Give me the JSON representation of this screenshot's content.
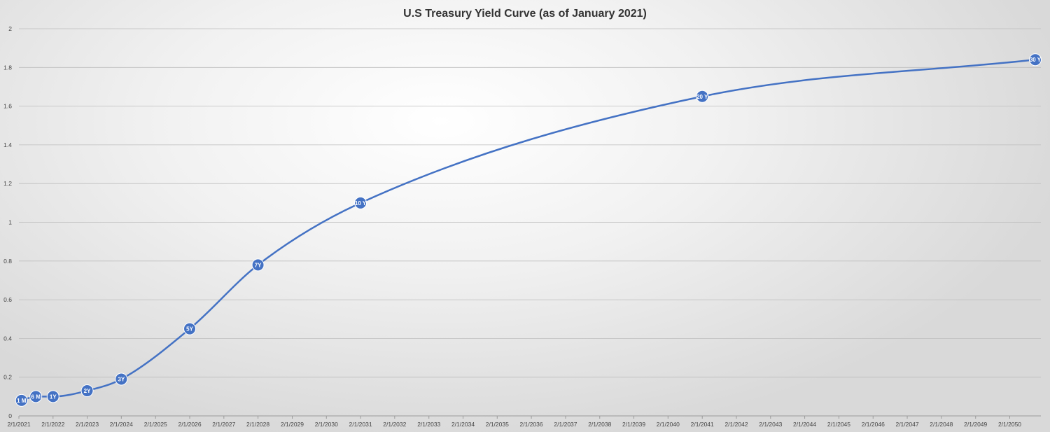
{
  "chart_data": {
    "type": "line",
    "title": "U.S Treasury Yield Curve (as of January 2021)",
    "xlabel": "",
    "ylabel": "",
    "ylim": [
      0,
      2
    ],
    "y_ticks": [
      "0",
      "0.2",
      "0.4",
      "0.6",
      "0.8",
      "1",
      "1.2",
      "1.4",
      "1.6",
      "1.8",
      "2"
    ],
    "x_range": [
      "2021-02-01",
      "2050-12-31"
    ],
    "x_ticks": [
      {
        "label": "2/1/2021",
        "year": 2021
      },
      {
        "label": "2/1/2022",
        "year": 2022
      },
      {
        "label": "2/1/2023",
        "year": 2023
      },
      {
        "label": "2/1/2024",
        "year": 2024
      },
      {
        "label": "2/1/2025",
        "year": 2025
      },
      {
        "label": "2/1/2026",
        "year": 2026
      },
      {
        "label": "2/1/2027",
        "year": 2027
      },
      {
        "label": "2/1/2028",
        "year": 2028
      },
      {
        "label": "2/1/2029",
        "year": 2029
      },
      {
        "label": "2/1/2030",
        "year": 2030
      },
      {
        "label": "2/1/2031",
        "year": 2031
      },
      {
        "label": "2/1/2032",
        "year": 2032
      },
      {
        "label": "2/1/2033",
        "year": 2033
      },
      {
        "label": "2/1/2034",
        "year": 2034
      },
      {
        "label": "2/1/2035",
        "year": 2035
      },
      {
        "label": "2/1/2036",
        "year": 2036
      },
      {
        "label": "2/1/2037",
        "year": 2037
      },
      {
        "label": "2/1/2038",
        "year": 2038
      },
      {
        "label": "2/1/2039",
        "year": 2039
      },
      {
        "label": "2/1/2040",
        "year": 2040
      },
      {
        "label": "2/1/2041",
        "year": 2041
      },
      {
        "label": "2/1/2042",
        "year": 2042
      },
      {
        "label": "2/1/2043",
        "year": 2043
      },
      {
        "label": "2/1/2044",
        "year": 2044
      },
      {
        "label": "2/1/2045",
        "year": 2045
      },
      {
        "label": "2/1/2046",
        "year": 2046
      },
      {
        "label": "2/1/2047",
        "year": 2047
      },
      {
        "label": "2/1/2048",
        "year": 2048
      },
      {
        "label": "2/1/2049",
        "year": 2049
      },
      {
        "label": "2/1/2050",
        "year": 2050
      }
    ],
    "grid": "horizontal",
    "smooth": true,
    "series": [
      {
        "color": "#4472c4",
        "points": [
          {
            "label": "1 M",
            "x": "2021-03-01",
            "y": 0.08
          },
          {
            "label": "6 M",
            "x": "2021-08-01",
            "y": 0.1
          },
          {
            "label": "1Y",
            "x": "2022-02-01",
            "y": 0.1
          },
          {
            "label": "2Y",
            "x": "2023-02-01",
            "y": 0.13
          },
          {
            "label": "3Y",
            "x": "2024-02-01",
            "y": 0.19
          },
          {
            "label": "5Y",
            "x": "2026-02-01",
            "y": 0.45
          },
          {
            "label": "7Y",
            "x": "2028-02-01",
            "y": 0.78
          },
          {
            "label": "10 Y",
            "x": "2031-02-01",
            "y": 1.1
          },
          {
            "label": "20 Y",
            "x": "2041-02-01",
            "y": 1.65
          },
          {
            "label": "30 Y",
            "x": "2050-11-01",
            "y": 1.84
          }
        ]
      }
    ]
  }
}
